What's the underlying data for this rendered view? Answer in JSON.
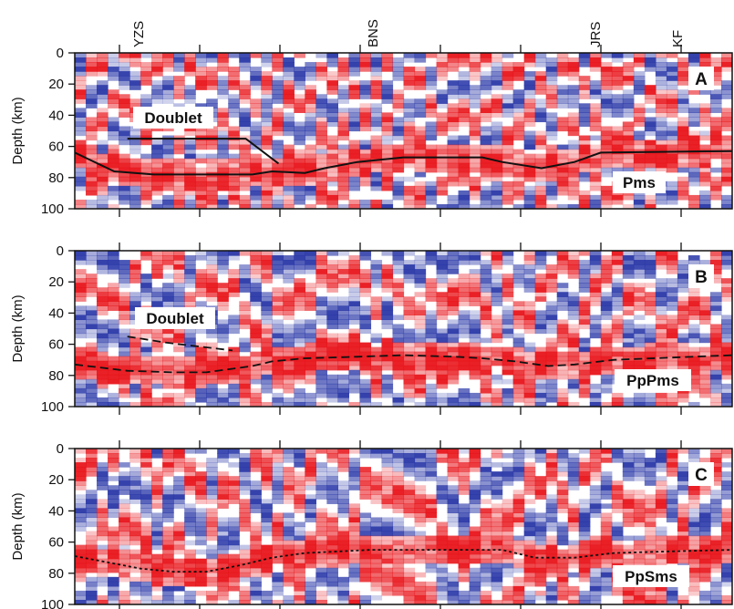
{
  "stations": [
    "YZS",
    "BNS",
    "JRS",
    "KF"
  ],
  "chart_data": [
    {
      "type": "heatmap",
      "panel": "A",
      "ylabel": "Depth (km)",
      "ylim": [
        0,
        100
      ],
      "y_ticks": [
        "0",
        "20",
        "40",
        "60",
        "80",
        "100"
      ],
      "annotations": [
        "Doublet",
        "Pms"
      ],
      "interfaces": [
        {
          "style": "solid",
          "x": [
            0,
            6,
            12,
            20,
            27,
            30,
            35,
            38,
            43,
            50,
            58,
            62,
            65,
            71,
            76,
            80,
            100
          ],
          "depth": [
            64,
            76,
            78,
            78,
            78,
            76,
            77,
            74,
            70,
            67,
            67,
            67,
            70,
            74,
            70,
            64,
            63
          ]
        },
        {
          "style": "solid",
          "x": [
            8,
            26,
            31
          ],
          "depth": [
            55,
            55,
            71
          ]
        }
      ],
      "colors": {
        "positive": "#e8141a",
        "negative": "#2a38a8",
        "neutral": "#ffffff"
      }
    },
    {
      "type": "heatmap",
      "panel": "B",
      "ylabel": "Depth (km)",
      "ylim": [
        0,
        100
      ],
      "y_ticks": [
        "0",
        "20",
        "40",
        "60",
        "80",
        "100"
      ],
      "annotations": [
        "Doublet",
        "PpPms"
      ],
      "interfaces": [
        {
          "style": "dashed",
          "x": [
            0,
            8,
            15,
            20,
            27,
            30,
            35,
            43,
            50,
            58,
            62,
            67,
            72,
            76,
            82,
            100
          ],
          "depth": [
            73,
            77,
            78,
            78,
            74,
            71,
            69,
            68,
            67,
            68,
            69,
            71,
            74,
            73,
            70,
            67
          ]
        },
        {
          "style": "dashed",
          "x": [
            8,
            14,
            20,
            24
          ],
          "depth": [
            55,
            59,
            62,
            64
          ]
        }
      ],
      "colors": {
        "positive": "#e8141a",
        "negative": "#2a38a8",
        "neutral": "#ffffff"
      }
    },
    {
      "type": "heatmap",
      "panel": "C",
      "ylabel": "Depth (km)",
      "ylim": [
        0,
        100
      ],
      "y_ticks": [
        "0",
        "20",
        "40",
        "60",
        "80",
        "100"
      ],
      "annotations": [
        "PpSms"
      ],
      "interfaces": [
        {
          "style": "dotted",
          "x": [
            0,
            5,
            10,
            15,
            20,
            25,
            30,
            35,
            40,
            45,
            52,
            58,
            65,
            70,
            76,
            82,
            90,
            100
          ],
          "depth": [
            69,
            73,
            77,
            79,
            79,
            75,
            70,
            67,
            66,
            65,
            65,
            65,
            65,
            70,
            70,
            67,
            66,
            65
          ]
        }
      ],
      "colors": {
        "positive": "#e8141a",
        "negative": "#2a38a8",
        "neutral": "#ffffff"
      }
    }
  ]
}
